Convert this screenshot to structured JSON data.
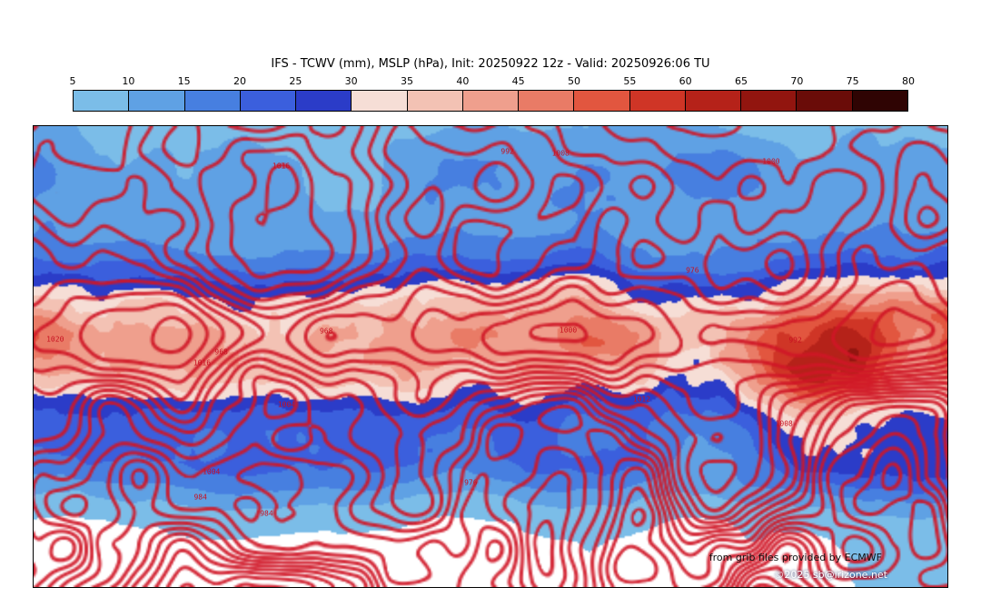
{
  "header": {
    "title": "IFS - TCWV (mm), MSLP (hPa), Init: 20250922 12z - Valid: 20250926:06 TU"
  },
  "colorbar": {
    "ticks": [
      "5",
      "10",
      "15",
      "20",
      "25",
      "30",
      "35",
      "40",
      "45",
      "50",
      "55",
      "60",
      "65",
      "70",
      "75",
      "80"
    ]
  },
  "map": {
    "attribution_line1": "from grib files provided by ECMWF",
    "attribution_line2": "©2025 sb@irizone.net",
    "contour_labels": [
      "1000",
      "1008",
      "1016",
      "1004",
      "992",
      "984",
      "976",
      "968",
      "1012",
      "1020"
    ]
  },
  "chart_data": {
    "type": "heatmap",
    "title": "IFS - TCWV (mm), MSLP (hPa), Init: 20250922 12z - Valid: 20250926:06 TU",
    "model": "IFS",
    "fill_field": "TCWV (mm)",
    "contour_field": "MSLP (hPa)",
    "init": "20250922 12z",
    "valid": "20250926:06 TU",
    "projection": "global equirectangular",
    "legend_position": "top",
    "colorbar_ticks": [
      5,
      10,
      15,
      20,
      25,
      30,
      35,
      40,
      45,
      50,
      55,
      60,
      65,
      70,
      75,
      80
    ],
    "colorbar_colors": [
      "#7bbde8",
      "#5fa1e4",
      "#477fe0",
      "#3b5fdd",
      "#2b3cc8",
      "#f6ded6",
      "#f3c2b4",
      "#ef9f8d",
      "#e97b66",
      "#e2563f",
      "#cf3526",
      "#b52219",
      "#92150f",
      "#6a0c08",
      "#2f0403"
    ],
    "below_min_color": "#ffffff",
    "contour_color": "#d01626",
    "attribution": [
      "from grib files provided by ECMWF",
      "©2025 sb@irizone.net"
    ]
  }
}
